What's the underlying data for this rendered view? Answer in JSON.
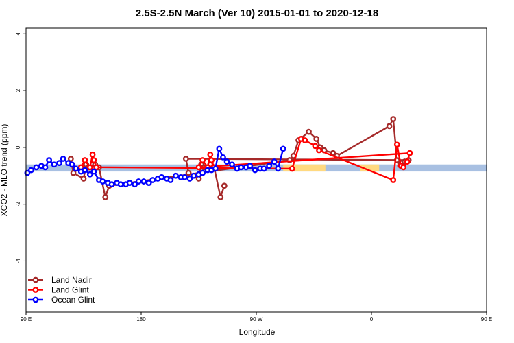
{
  "chart_data": {
    "type": "line",
    "title": "2.5S-2.5N March (Ver 10)   2015-01-01 to 2020-12-18",
    "xlabel": "Longitude",
    "ylabel": "XCO2 - MLO trend (ppm)",
    "xlim": [
      90,
      450
    ],
    "ylim": [
      -5.8,
      4.2
    ],
    "x_ticks": [
      {
        "value": 90,
        "label": "90 E"
      },
      {
        "value": 180,
        "label": "180"
      },
      {
        "value": 270,
        "label": "90 W"
      },
      {
        "value": 360,
        "label": "0"
      },
      {
        "value": 450,
        "label": "90 E"
      },
      {
        "value": 540,
        "label": "180"
      }
    ],
    "y_ticks": [
      {
        "value": -4,
        "label": "-4"
      },
      {
        "value": -2,
        "label": "-2"
      },
      {
        "value": 0,
        "label": "0"
      },
      {
        "value": 2,
        "label": "2"
      },
      {
        "value": 4,
        "label": "4"
      }
    ],
    "bands": [
      {
        "x": [
          90,
          540
        ],
        "y": [
          -0.85,
          -0.6
        ],
        "color": "#a8c0e2"
      },
      {
        "x": [
          291,
          324
        ],
        "y": [
          -0.85,
          -0.6
        ],
        "color": "#ffd980"
      },
      {
        "x": [
          351,
          366
        ],
        "y": [
          -0.85,
          -0.6
        ],
        "color": "#ffd980"
      }
    ],
    "series": [
      {
        "name": "Land Nadir",
        "color": "#a52a2a",
        "points": [
          [
            125,
            -0.4
          ],
          [
            127,
            -0.9
          ],
          [
            135,
            -1.1
          ],
          [
            137,
            -0.6
          ],
          [
            139,
            -0.7
          ],
          [
            144,
            -0.6
          ],
          [
            147,
            -0.7
          ],
          [
            152,
            -1.75
          ],
          [
            155,
            -1.35
          ],
          [
            296,
            -0.45
          ],
          [
            299,
            -0.3
          ],
          [
            303,
            0.25
          ],
          [
            311,
            0.55
          ],
          [
            317,
            0.3
          ],
          [
            320,
            0.0
          ],
          [
            323,
            -0.1
          ],
          [
            330,
            -0.2
          ],
          [
            333,
            -0.3
          ],
          [
            374,
            0.75
          ],
          [
            377,
            1.0
          ],
          [
            380,
            -0.45
          ],
          [
            383,
            -0.55
          ],
          [
            386,
            -0.5
          ],
          [
            389,
            -0.45
          ],
          [
            215,
            -0.4
          ],
          [
            217,
            -0.9
          ],
          [
            225,
            -1.1
          ],
          [
            227,
            -0.6
          ],
          [
            229,
            -0.7
          ],
          [
            234,
            -0.6
          ],
          [
            237,
            -0.7
          ],
          [
            242,
            -1.75
          ],
          [
            245,
            -1.35
          ]
        ]
      },
      {
        "name": "Land Glint",
        "color": "#ff0000",
        "points": [
          [
            133,
            -0.7
          ],
          [
            136,
            -0.45
          ],
          [
            140,
            -0.7
          ],
          [
            142,
            -0.25
          ],
          [
            143,
            -0.45
          ],
          [
            145,
            -0.7
          ],
          [
            298,
            -0.75
          ],
          [
            305,
            0.3
          ],
          [
            308,
            0.25
          ],
          [
            316,
            0.05
          ],
          [
            319,
            -0.1
          ],
          [
            377,
            -1.15
          ],
          [
            380,
            0.1
          ],
          [
            383,
            -0.65
          ],
          [
            385,
            -0.7
          ],
          [
            388,
            -0.5
          ],
          [
            390,
            -0.2
          ],
          [
            225,
            -0.7
          ],
          [
            228,
            -0.45
          ],
          [
            232,
            -0.7
          ],
          [
            234,
            -0.25
          ],
          [
            235,
            -0.45
          ],
          [
            237,
            -0.7
          ]
        ]
      },
      {
        "name": "Ocean Glint",
        "color": "#0000ff",
        "points": [
          [
            91,
            -0.9
          ],
          [
            94,
            -0.8
          ],
          [
            98,
            -0.7
          ],
          [
            102,
            -0.65
          ],
          [
            105,
            -0.7
          ],
          [
            108,
            -0.45
          ],
          [
            112,
            -0.6
          ],
          [
            116,
            -0.55
          ],
          [
            119,
            -0.4
          ],
          [
            123,
            -0.55
          ],
          [
            126,
            -0.6
          ],
          [
            129,
            -0.75
          ],
          [
            133,
            -0.85
          ],
          [
            136,
            -0.8
          ],
          [
            140,
            -0.95
          ],
          [
            143,
            -0.85
          ],
          [
            147,
            -1.15
          ],
          [
            150,
            -1.2
          ],
          [
            154,
            -1.25
          ],
          [
            157,
            -1.3
          ],
          [
            161,
            -1.25
          ],
          [
            164,
            -1.3
          ],
          [
            168,
            -1.3
          ],
          [
            171,
            -1.25
          ],
          [
            175,
            -1.3
          ],
          [
            178,
            -1.2
          ],
          [
            182,
            -1.2
          ],
          [
            186,
            -1.25
          ],
          [
            189,
            -1.15
          ],
          [
            193,
            -1.1
          ],
          [
            196,
            -1.05
          ],
          [
            200,
            -1.1
          ],
          [
            203,
            -1.15
          ],
          [
            207,
            -1.0
          ],
          [
            211,
            -1.05
          ],
          [
            214,
            -1.05
          ],
          [
            218,
            -1.1
          ],
          [
            221,
            -1.0
          ],
          [
            225,
            -0.95
          ],
          [
            228,
            -0.9
          ],
          [
            232,
            -0.8
          ],
          [
            235,
            -0.8
          ],
          [
            238,
            -0.75
          ],
          [
            241,
            -0.05
          ],
          [
            244,
            -0.35
          ],
          [
            247,
            -0.5
          ],
          [
            251,
            -0.6
          ],
          [
            255,
            -0.75
          ],
          [
            258,
            -0.7
          ],
          [
            262,
            -0.7
          ],
          [
            265,
            -0.65
          ],
          [
            269,
            -0.8
          ],
          [
            273,
            -0.75
          ],
          [
            276,
            -0.75
          ],
          [
            280,
            -0.65
          ],
          [
            284,
            -0.5
          ],
          [
            287,
            -0.75
          ],
          [
            291,
            -0.05
          ]
        ]
      }
    ],
    "legend": {
      "position": "bottom-left",
      "entries": [
        "Land Nadir",
        "Land Glint",
        "Ocean Glint"
      ]
    }
  }
}
